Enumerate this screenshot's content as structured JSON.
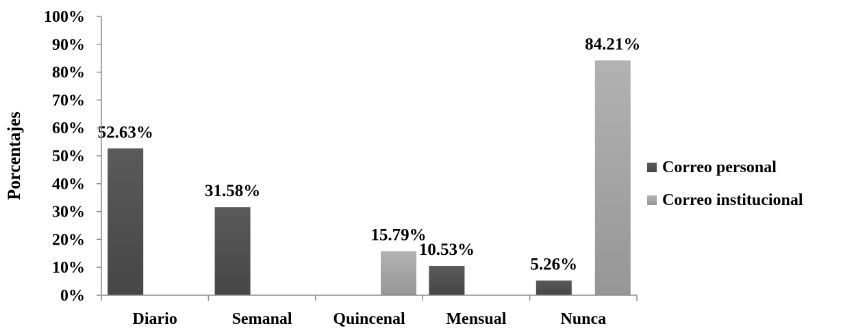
{
  "chart_data": {
    "type": "bar",
    "title": "",
    "xlabel": "",
    "ylabel": "Porcentajes",
    "ylim": [
      0,
      100
    ],
    "yticks": [
      "0%",
      "10%",
      "20%",
      "30%",
      "40%",
      "50%",
      "60%",
      "70%",
      "80%",
      "90%",
      "100%"
    ],
    "grid": false,
    "legend_position": "right",
    "categories": [
      "Diario",
      "Semanal",
      "Quincenal",
      "Mensual",
      "Nunca"
    ],
    "series": [
      {
        "name": "Correo personal",
        "color": "#505050",
        "values": [
          52.63,
          31.58,
          null,
          10.53,
          5.26
        ],
        "labels": [
          "52.63%",
          "31.58%",
          "",
          "10.53%",
          "5.26%"
        ]
      },
      {
        "name": "Correo institucional",
        "color": "#a6a6a6",
        "values": [
          null,
          null,
          15.79,
          null,
          84.21
        ],
        "labels": [
          "",
          "",
          "15.79%",
          "",
          "84.21%"
        ]
      }
    ]
  }
}
